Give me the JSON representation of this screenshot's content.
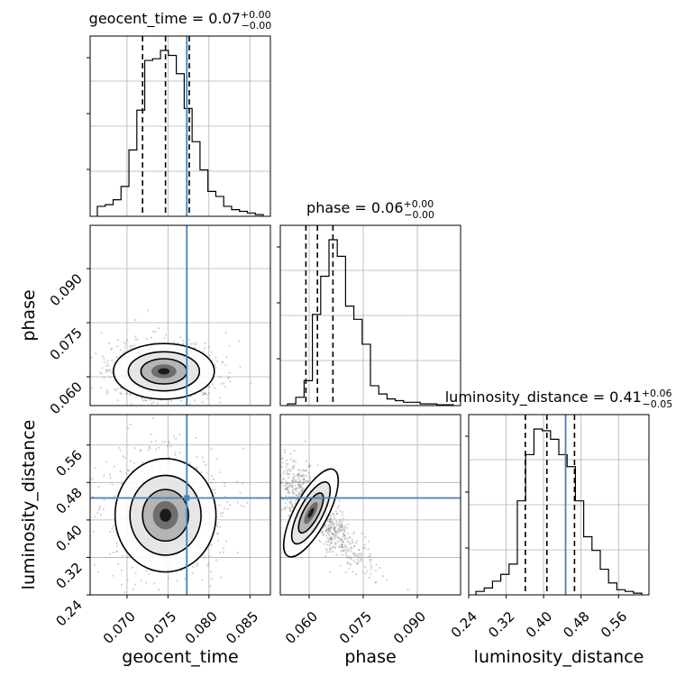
{
  "chart_data": {
    "type": "corner",
    "parameters": [
      {
        "name": "geocent_time",
        "label": "geocent_time",
        "range": [
          0.0655,
          0.0875
        ],
        "ticks": [
          0.07,
          0.075,
          0.08,
          0.085
        ],
        "tick_labels": [
          "0.070",
          "0.075",
          "0.080",
          "0.085"
        ],
        "title": "geocent_time = 0.07",
        "title_sup": "+0.00",
        "title_sub": "−0.00",
        "quantiles": [
          0.0719,
          0.0747,
          0.0776
        ],
        "truth": 0.0773,
        "hist": [
          0.06,
          0.07,
          0.1,
          0.18,
          0.4,
          0.64,
          0.94,
          0.95,
          1.0,
          0.97,
          0.86,
          0.65,
          0.45,
          0.28,
          0.15,
          0.12,
          0.06,
          0.04,
          0.03,
          0.02,
          0.01
        ]
      },
      {
        "name": "phase",
        "label": "phase",
        "range": [
          0.052,
          0.102
        ],
        "ticks": [
          0.06,
          0.075,
          0.09
        ],
        "tick_labels": [
          "0.060",
          "0.075",
          "0.090"
        ],
        "title": "phase = 0.06",
        "title_sup": "+0.00",
        "title_sub": "−0.00",
        "quantiles": [
          0.0591,
          0.0623,
          0.0666
        ],
        "truth": null,
        "hist": [
          0.01,
          0.05,
          0.15,
          0.55,
          0.78,
          1.0,
          0.9,
          0.6,
          0.52,
          0.37,
          0.12,
          0.07,
          0.04,
          0.03,
          0.02,
          0.02,
          0.01,
          0.01,
          0.005,
          0.005
        ]
      },
      {
        "name": "luminosity_distance",
        "label": "luminosity_distance",
        "range": [
          0.24,
          0.625
        ],
        "ticks": [
          0.24,
          0.32,
          0.4,
          0.48,
          0.56
        ],
        "tick_labels": [
          "0.24",
          "0.32",
          "0.40",
          "0.48",
          "0.56"
        ],
        "title": "luminosity_distance = 0.41",
        "title_sup": "+0.06",
        "title_sub": "−0.05",
        "quantiles": [
          0.361,
          0.407,
          0.466
        ],
        "truth": 0.447,
        "hist": [
          0.02,
          0.04,
          0.08,
          0.12,
          0.18,
          0.55,
          0.82,
          0.97,
          0.96,
          0.91,
          0.82,
          0.75,
          0.55,
          0.34,
          0.26,
          0.15,
          0.07,
          0.03,
          0.02,
          0.01
        ]
      }
    ],
    "y_ticks": {
      "phase": {
        "ticks": [
          0.06,
          0.075,
          0.09
        ],
        "tick_labels": [
          "0.060",
          "0.075",
          "0.090"
        ]
      },
      "luminosity_distance": {
        "ticks": [
          0.24,
          0.32,
          0.4,
          0.48,
          0.56
        ],
        "tick_labels": [
          "0.24",
          "0.32",
          "0.40",
          "0.48",
          "0.56"
        ]
      }
    },
    "joint": [
      {
        "x": "geocent_time",
        "y": "phase",
        "center": [
          0.0745,
          0.0615
        ],
        "sd": [
          0.0028,
          0.0035
        ],
        "truth": [
          0.0773,
          null
        ]
      },
      {
        "x": "geocent_time",
        "y": "luminosity_distance",
        "center": [
          0.0747,
          0.41
        ],
        "sd": [
          0.0028,
          0.055
        ],
        "truth": [
          0.0773,
          0.447
        ]
      },
      {
        "x": "phase",
        "y": "luminosity_distance",
        "center": [
          0.0605,
          0.415
        ],
        "sd": [
          0.0028,
          0.05
        ],
        "truth": [
          null,
          0.447
        ]
      }
    ],
    "colors": {
      "truth": "#4682b4",
      "hist": "#000000",
      "grid": "#b0b0b0",
      "scatter": "#7f7f7f"
    },
    "grid": true
  }
}
